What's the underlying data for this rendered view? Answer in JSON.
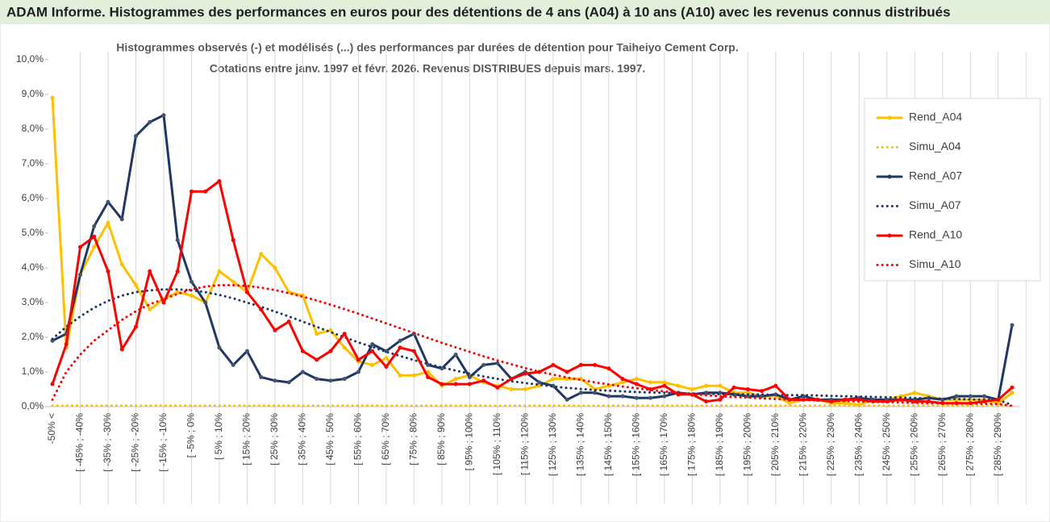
{
  "chart_data": {
    "type": "line",
    "header": "ADAM Informe. Histogrammes des performances en euros pour des détentions de 4 ans (A04) à 10 ans (A10) avec les revenus connus distribués",
    "title": "Histogrammes observés (-) et modélisés (...) des performances par durées de détention pour Taiheiyo Cement Corp.",
    "subtitle": "Cotations entre janv. 1997 et févr. 2026. Revenus DISTRIBUES depuis mars. 1997.",
    "categories": [
      "-50% <",
      null,
      "[ -45% ; -40%",
      null,
      "[ -35% ; -30%",
      null,
      "[ -25% ; -20%",
      null,
      "[ -15% ; -10%",
      null,
      "[ -5% ; 0%",
      null,
      "[ 5% ; 10%",
      null,
      "[ 15% ; 20%",
      null,
      "[ 25% ; 30%",
      null,
      "[ 35% ; 40%",
      null,
      "[ 45% ; 50%",
      null,
      "[ 55% ; 60%",
      null,
      "[ 65% ; 70%",
      null,
      "[ 75% ; 80%",
      null,
      "[ 85% ; 90%",
      null,
      "[ 95% ; 100%",
      null,
      "[ 105% ; 110%",
      null,
      "[ 115% ; 120%",
      null,
      "[ 125% ; 130%",
      null,
      "[ 135% ; 140%",
      null,
      "[ 145% ; 150%",
      null,
      "[ 155% ; 160%",
      null,
      "[ 165% ; 170%",
      null,
      "[ 175% ; 180%",
      null,
      "[ 185% ; 190%",
      null,
      "[ 195% ; 200%",
      null,
      "[ 205% ; 210%",
      null,
      "[ 215% ; 220%",
      null,
      "[ 225% ; 230%",
      null,
      "[ 235% ; 240%",
      null,
      "[ 245% ; 250%",
      null,
      "[ 255% ; 260%",
      null,
      "[ 265% ; 270%",
      null,
      "[ 275% ; 280%",
      null,
      "[ 285% ; 290%",
      null
    ],
    "ylim": [
      0,
      10
    ],
    "yticks": [
      {
        "value": 0,
        "label": "0,0%"
      },
      {
        "value": 1,
        "label": "1,0%"
      },
      {
        "value": 2,
        "label": "2,0%"
      },
      {
        "value": 3,
        "label": "3,0%"
      },
      {
        "value": 4,
        "label": "4,0%"
      },
      {
        "value": 5,
        "label": "5,0%"
      },
      {
        "value": 6,
        "label": "6,0%"
      },
      {
        "value": 7,
        "label": "7,0%"
      },
      {
        "value": 8,
        "label": "8,0%"
      },
      {
        "value": 9,
        "label": "9,0%"
      },
      {
        "value": 10,
        "label": "10,0%"
      }
    ],
    "grid": true,
    "legend": "right",
    "series": [
      {
        "name": "Rend_A04",
        "color": "#ffc000",
        "line_style": "solid",
        "values": [
          8.9,
          1.7,
          3.8,
          4.6,
          5.3,
          4.1,
          3.5,
          2.8,
          3.1,
          3.3,
          3.2,
          3.0,
          3.9,
          3.6,
          3.3,
          4.4,
          4.0,
          3.3,
          3.2,
          2.1,
          2.2,
          1.7,
          1.3,
          1.2,
          1.4,
          0.9,
          0.9,
          1.0,
          0.6,
          0.8,
          0.9,
          0.7,
          0.6,
          0.5,
          0.5,
          0.6,
          0.8,
          0.8,
          0.8,
          0.5,
          0.6,
          0.7,
          0.8,
          0.7,
          0.7,
          0.6,
          0.5,
          0.6,
          0.6,
          0.4,
          0.4,
          0.3,
          0.3,
          0.1,
          0.2,
          0.2,
          0.1,
          0.1,
          0.05,
          0.2,
          0.2,
          0.3,
          0.4,
          0.3,
          0.2,
          0.2,
          0.2,
          0.2,
          0.1,
          0.4
        ]
      },
      {
        "name": "Simu_A04",
        "color": "#ffc000",
        "line_style": "dotted",
        "values": [
          0.03,
          0.03,
          0.03,
          0.03,
          0.03,
          0.03,
          0.03,
          0.03,
          0.03,
          0.03,
          0.03,
          0.03,
          0.03,
          0.03,
          0.03,
          0.03,
          0.03,
          0.03,
          0.03,
          0.03,
          0.03,
          0.03,
          0.03,
          0.03,
          0.03,
          0.03,
          0.03,
          0.03,
          0.03,
          0.03,
          0.03,
          0.03,
          0.03,
          0.03,
          0.03,
          0.03,
          0.03,
          0.03,
          0.03,
          0.03,
          0.03,
          0.03,
          0.03,
          0.03,
          0.03,
          0.03,
          0.03,
          0.03,
          0.03,
          0.03,
          0.03,
          0.03,
          0.03,
          0.03,
          0.03,
          0.03,
          0.03,
          0.03,
          0.03,
          0.03,
          0.03,
          0.03,
          0.03,
          0.03,
          0.03,
          0.03,
          0.03,
          0.03,
          0.03,
          0.03
        ]
      },
      {
        "name": "Rend_A07",
        "color": "#1f3864",
        "line_style": "solid",
        "values": [
          1.9,
          2.1,
          3.8,
          5.2,
          5.9,
          5.4,
          7.8,
          8.2,
          8.4,
          4.8,
          3.6,
          3.0,
          1.7,
          1.2,
          1.6,
          0.85,
          0.75,
          0.7,
          1.0,
          0.8,
          0.75,
          0.8,
          1.0,
          1.8,
          1.6,
          1.9,
          2.1,
          1.2,
          1.1,
          1.5,
          0.85,
          1.2,
          1.25,
          0.8,
          1.0,
          0.7,
          0.6,
          0.2,
          0.4,
          0.4,
          0.3,
          0.3,
          0.25,
          0.25,
          0.3,
          0.4,
          0.35,
          0.4,
          0.4,
          0.35,
          0.3,
          0.3,
          0.35,
          0.2,
          0.3,
          0.2,
          0.2,
          0.2,
          0.25,
          0.2,
          0.2,
          0.2,
          0.2,
          0.25,
          0.2,
          0.3,
          0.3,
          0.3,
          0.2,
          2.35
        ]
      },
      {
        "name": "Simu_A07",
        "color": "#1f3864",
        "line_style": "dotted",
        "values": [
          1.95,
          2.3,
          2.6,
          2.85,
          3.05,
          3.2,
          3.3,
          3.35,
          3.38,
          3.38,
          3.35,
          3.3,
          3.22,
          3.12,
          3.0,
          2.88,
          2.74,
          2.6,
          2.45,
          2.3,
          2.15,
          2.0,
          1.85,
          1.72,
          1.58,
          1.46,
          1.34,
          1.23,
          1.13,
          1.04,
          0.95,
          0.87,
          0.8,
          0.73,
          0.68,
          0.63,
          0.58,
          0.54,
          0.51,
          0.48,
          0.46,
          0.44,
          0.42,
          0.41,
          0.4,
          0.39,
          0.38,
          0.37,
          0.36,
          0.36,
          0.35,
          0.35,
          0.34,
          0.33,
          0.33,
          0.32,
          0.31,
          0.3,
          0.29,
          0.28,
          0.27,
          0.26,
          0.25,
          0.24,
          0.23,
          0.22,
          0.21,
          0.2,
          0.19,
          0.05
        ]
      },
      {
        "name": "Rend_A10",
        "color": "#ff0000",
        "line_style": "solid",
        "values": [
          0.65,
          1.8,
          4.6,
          4.9,
          3.9,
          1.65,
          2.3,
          3.9,
          3.0,
          3.9,
          6.2,
          6.2,
          6.5,
          4.8,
          3.3,
          2.8,
          2.2,
          2.45,
          1.6,
          1.35,
          1.6,
          2.1,
          1.35,
          1.6,
          1.15,
          1.7,
          1.6,
          0.85,
          0.65,
          0.65,
          0.65,
          0.75,
          0.55,
          0.8,
          0.95,
          1.0,
          1.2,
          1.0,
          1.2,
          1.2,
          1.1,
          0.8,
          0.65,
          0.5,
          0.6,
          0.35,
          0.35,
          0.15,
          0.2,
          0.55,
          0.5,
          0.45,
          0.6,
          0.2,
          0.2,
          0.2,
          0.15,
          0.2,
          0.2,
          0.15,
          0.15,
          0.2,
          0.15,
          0.15,
          0.1,
          0.1,
          0.1,
          0.15,
          0.2,
          0.55
        ]
      },
      {
        "name": "Simu_A10",
        "color": "#ff0000",
        "line_style": "dotted",
        "values": [
          0.2,
          1.0,
          1.5,
          1.9,
          2.2,
          2.5,
          2.75,
          2.95,
          3.1,
          3.25,
          3.38,
          3.46,
          3.5,
          3.5,
          3.48,
          3.43,
          3.36,
          3.27,
          3.17,
          3.06,
          2.94,
          2.81,
          2.68,
          2.54,
          2.4,
          2.26,
          2.12,
          1.98,
          1.84,
          1.71,
          1.58,
          1.45,
          1.33,
          1.22,
          1.11,
          1.01,
          0.92,
          0.84,
          0.77,
          0.7,
          0.64,
          0.58,
          0.53,
          0.48,
          0.44,
          0.4,
          0.36,
          0.33,
          0.3,
          0.28,
          0.26,
          0.24,
          0.22,
          0.2,
          0.19,
          0.18,
          0.17,
          0.16,
          0.15,
          0.14,
          0.13,
          0.12,
          0.11,
          0.1,
          0.1,
          0.09,
          0.09,
          0.08,
          0.08,
          0.02
        ]
      }
    ]
  }
}
